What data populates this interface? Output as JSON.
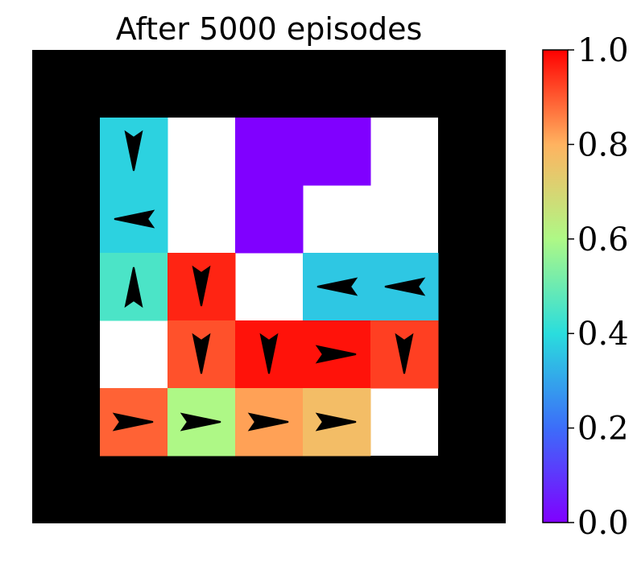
{
  "chart_data": {
    "type": "heatmap",
    "title": "After 5000 episodes",
    "rows": 7,
    "cols": 7,
    "wall_color": "#000000",
    "empty_color": "#ffffff",
    "colormap": "rainbow",
    "colorbar": {
      "range": [
        0.0,
        1.0
      ],
      "ticks": [
        "0.0",
        "0.2",
        "0.4",
        "0.6",
        "0.8",
        "1.0"
      ],
      "stops": [
        "#8000ff",
        "#3c6df9",
        "#2adddd",
        "#aef886",
        "#ffb360",
        "#ff0000"
      ]
    },
    "cells": [
      {
        "row": 1,
        "col": 1,
        "value": 0.38,
        "arrow": "down"
      },
      {
        "row": 1,
        "col": 3,
        "value": 0.0
      },
      {
        "row": 1,
        "col": 4,
        "value": 0.0
      },
      {
        "row": 2,
        "col": 1,
        "value": 0.38,
        "arrow": "left"
      },
      {
        "row": 2,
        "col": 3,
        "value": 0.0
      },
      {
        "row": 3,
        "col": 1,
        "value": 0.45,
        "arrow": "up"
      },
      {
        "row": 3,
        "col": 2,
        "value": 0.96,
        "arrow": "down"
      },
      {
        "row": 3,
        "col": 4,
        "value": 0.36,
        "arrow": "left"
      },
      {
        "row": 3,
        "col": 5,
        "value": 0.36,
        "arrow": "left"
      },
      {
        "row": 4,
        "col": 2,
        "value": 0.91,
        "arrow": "down"
      },
      {
        "row": 4,
        "col": 3,
        "value": 0.98,
        "arrow": "down"
      },
      {
        "row": 4,
        "col": 4,
        "value": 0.98,
        "arrow": "right"
      },
      {
        "row": 4,
        "col": 5,
        "value": 0.93,
        "arrow": "down"
      },
      {
        "row": 5,
        "col": 1,
        "value": 0.89,
        "arrow": "right"
      },
      {
        "row": 5,
        "col": 2,
        "value": 0.6,
        "arrow": "right"
      },
      {
        "row": 5,
        "col": 3,
        "value": 0.82,
        "arrow": "right"
      },
      {
        "row": 5,
        "col": 4,
        "value": 0.77,
        "arrow": "right"
      }
    ]
  }
}
